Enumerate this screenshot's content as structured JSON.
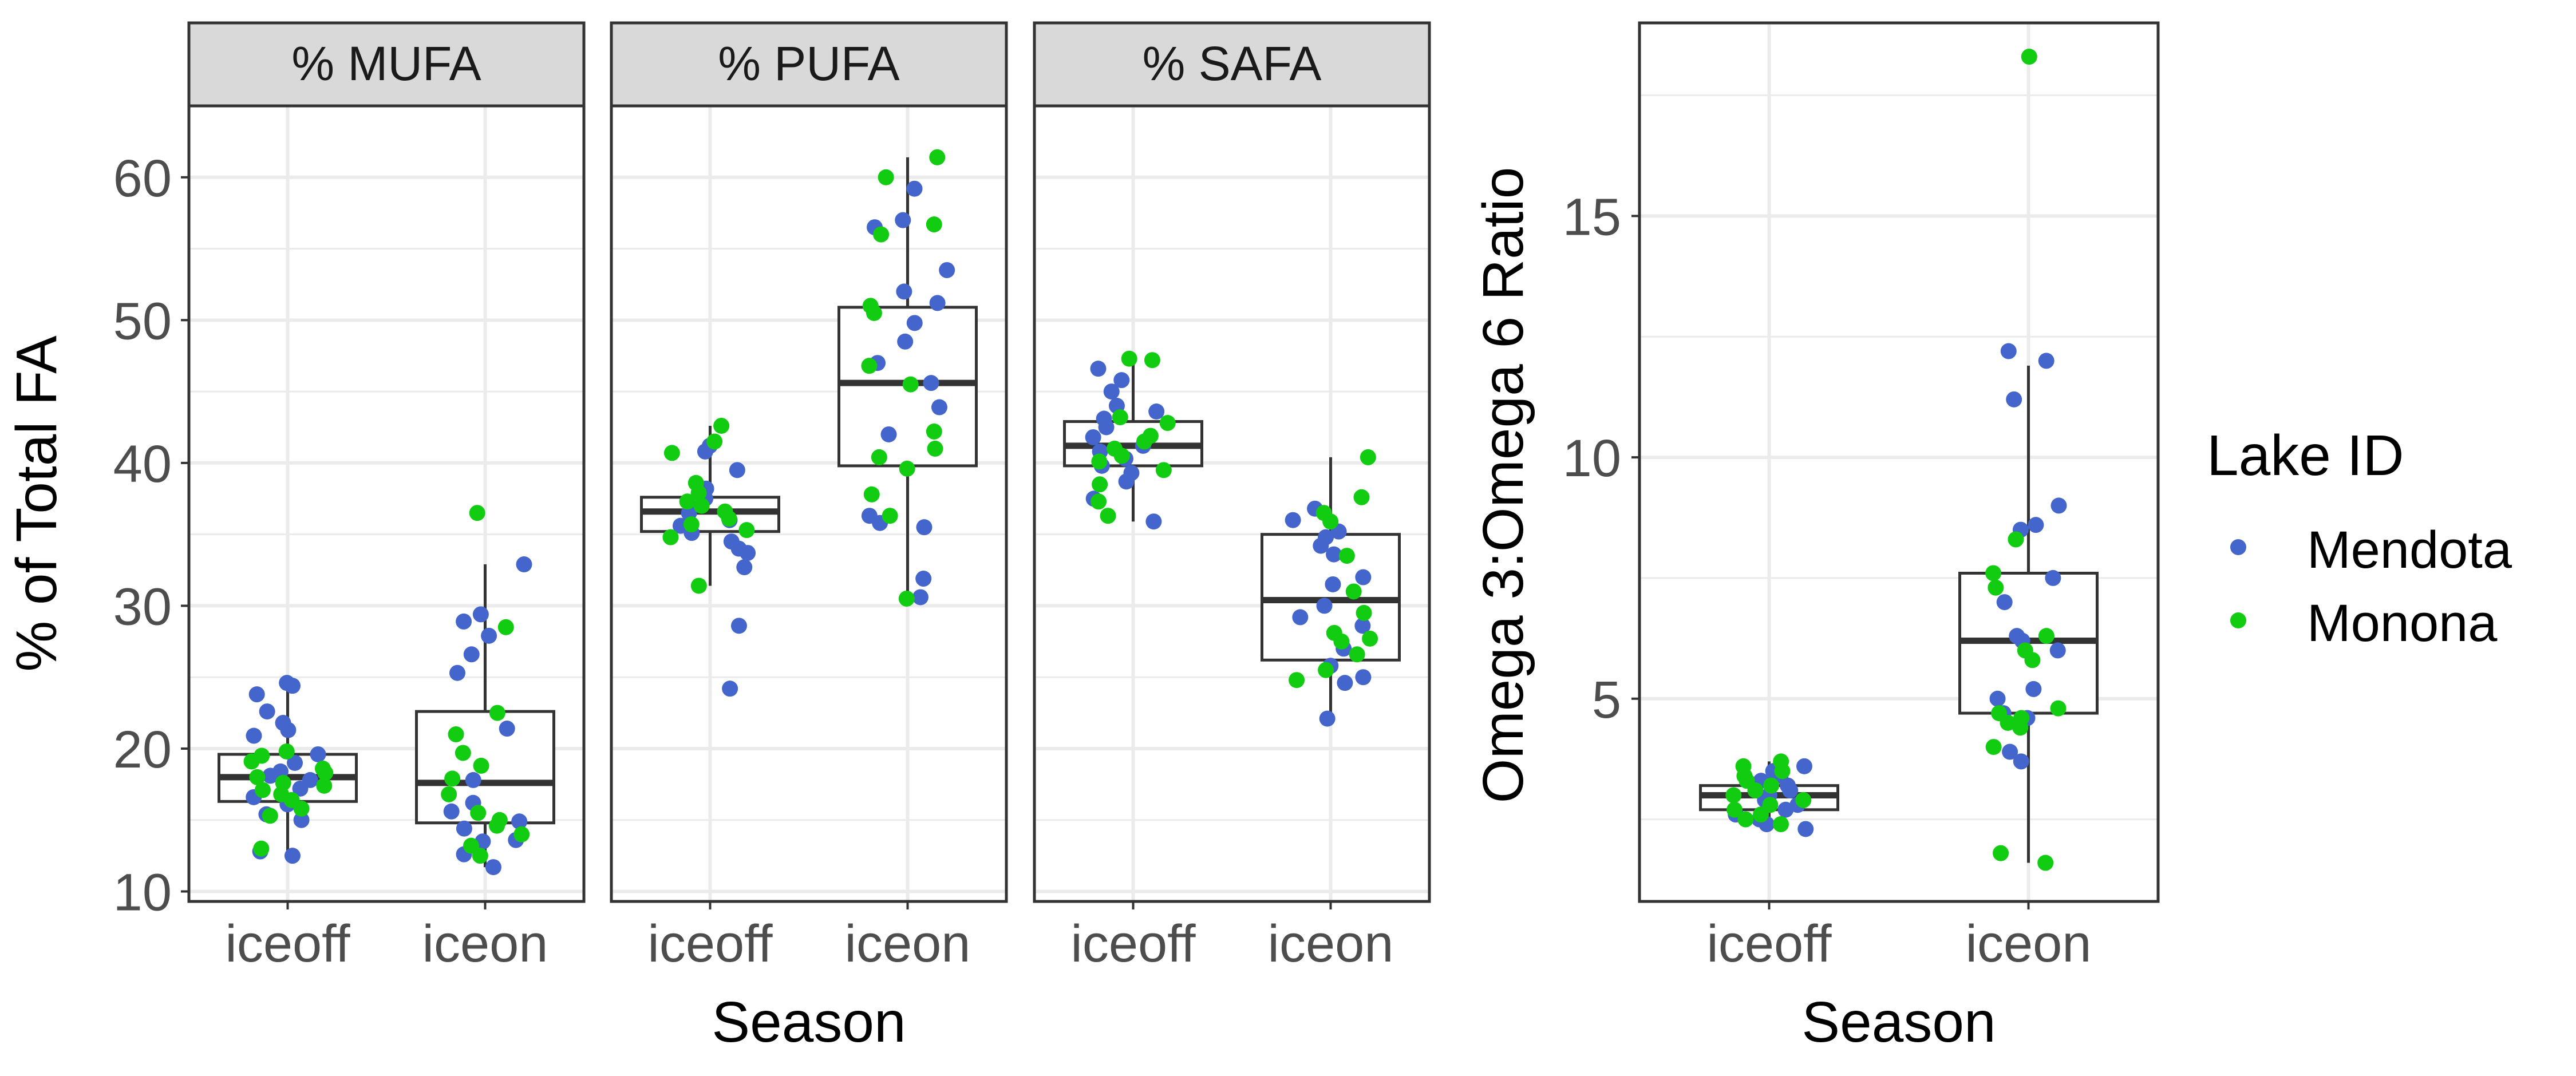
{
  "colors": {
    "mendota": "#4466cc",
    "monona": "#11cc11",
    "strip_fill": "#d9d9d9",
    "grid": "#ebebeb",
    "box": "#333333"
  },
  "legend": {
    "title": "Lake ID",
    "entries": [
      {
        "label": "Mendota",
        "color_key": "mendota"
      },
      {
        "label": "Monona",
        "color_key": "monona"
      }
    ]
  },
  "chart_data": [
    {
      "type": "box",
      "facets": [
        "% MUFA",
        "% PUFA",
        "% SAFA"
      ],
      "categories": [
        "iceoff",
        "iceon"
      ],
      "xlabel": "Season",
      "ylabel": "% of Total FA",
      "ylim": [
        9.3,
        65
      ],
      "yticks": [
        10,
        20,
        30,
        40,
        50,
        60
      ],
      "grid": true,
      "panels": [
        {
          "facet": "% MUFA",
          "boxes": [
            {
              "category": "iceoff",
              "q1": 16.3,
              "median": 18.0,
              "q3": 19.6,
              "whisker_low": 12.5,
              "whisker_high": 24.6
            },
            {
              "category": "iceon",
              "q1": 14.8,
              "median": 17.6,
              "q3": 22.6,
              "whisker_low": 11.7,
              "whisker_high": 32.9
            }
          ],
          "points": {
            "iceoff": {
              "mendota": [
                24.6,
                24.4,
                23.8,
                22.6,
                21.8,
                21.3,
                20.9,
                19.6,
                19.0,
                18.4,
                18.1,
                17.8,
                17.2,
                16.6,
                16.1,
                15.4,
                15.0,
                12.8,
                12.5
              ],
              "monona": [
                19.8,
                19.5,
                19.1,
                18.6,
                18.3,
                18.0,
                17.6,
                17.4,
                17.1,
                16.8,
                16.4,
                15.8,
                15.3,
                13.0
              ]
            },
            "iceon": {
              "mendota": [
                32.9,
                29.4,
                28.9,
                27.9,
                26.6,
                25.3,
                21.4,
                17.8,
                16.2,
                15.6,
                14.9,
                14.4,
                13.6,
                13.5,
                12.6,
                11.7
              ],
              "monona": [
                36.5,
                28.5,
                22.5,
                21.0,
                19.7,
                18.8,
                17.9,
                16.8,
                15.5,
                15.0,
                14.6,
                14.0,
                13.2,
                12.5
              ]
            }
          }
        },
        {
          "facet": "% PUFA",
          "boxes": [
            {
              "category": "iceoff",
              "q1": 35.2,
              "median": 36.6,
              "q3": 37.6,
              "whisker_low": 31.4,
              "whisker_high": 42.6
            },
            {
              "category": "iceon",
              "q1": 39.8,
              "median": 45.6,
              "q3": 50.9,
              "whisker_low": 30.5,
              "whisker_high": 61.4
            }
          ],
          "points": {
            "iceoff": {
              "mendota": [
                41.2,
                40.8,
                39.5,
                38.2,
                37.5,
                36.9,
                36.5,
                36.0,
                35.6,
                35.1,
                34.5,
                34.0,
                33.7,
                32.7,
                28.6,
                24.2
              ],
              "monona": [
                42.6,
                41.5,
                40.7,
                38.6,
                37.9,
                37.3,
                37.0,
                36.6,
                36.1,
                35.7,
                35.3,
                34.8,
                31.4
              ]
            },
            "iceon": {
              "mendota": [
                59.2,
                57.0,
                56.5,
                53.5,
                52.0,
                51.2,
                49.8,
                48.5,
                47.0,
                45.6,
                43.9,
                42.0,
                36.3,
                35.8,
                35.5,
                31.9,
                30.6
              ],
              "monona": [
                61.4,
                60.0,
                56.7,
                56.0,
                51.0,
                50.5,
                46.8,
                45.5,
                42.2,
                41.0,
                40.4,
                39.6,
                37.8,
                36.3,
                30.5
              ]
            }
          }
        },
        {
          "facet": "% SAFA",
          "boxes": [
            {
              "category": "iceoff",
              "q1": 39.8,
              "median": 41.2,
              "q3": 42.9,
              "whisker_low": 35.9,
              "whisker_high": 47.3
            },
            {
              "category": "iceon",
              "q1": 26.2,
              "median": 30.4,
              "q3": 35.0,
              "whisker_low": 22.1,
              "whisker_high": 40.4
            }
          ],
          "points": {
            "iceoff": {
              "mendota": [
                46.6,
                45.8,
                45.0,
                44.0,
                43.6,
                43.1,
                42.5,
                41.8,
                41.2,
                40.8,
                40.3,
                39.8,
                39.3,
                38.7,
                37.5,
                35.9
              ],
              "monona": [
                47.3,
                47.2,
                43.2,
                42.8,
                41.9,
                41.5,
                41.0,
                40.5,
                40.1,
                39.5,
                38.5,
                37.3,
                36.3
              ]
            },
            "iceon": {
              "mendota": [
                36.8,
                36.0,
                35.2,
                34.8,
                34.2,
                33.6,
                32.0,
                31.5,
                30.0,
                29.2,
                28.6,
                27.0,
                25.8,
                25.0,
                24.6,
                22.1
              ],
              "monona": [
                40.4,
                37.6,
                36.5,
                35.9,
                33.5,
                31.0,
                29.5,
                28.1,
                27.7,
                27.5,
                26.6,
                25.5,
                24.8
              ]
            }
          }
        }
      ]
    },
    {
      "type": "box",
      "categories": [
        "iceoff",
        "iceon"
      ],
      "xlabel": "Season",
      "ylabel": "Omega 3:Omega 6 Ratio",
      "ylim": [
        0.8,
        19.0
      ],
      "yticks": [
        5,
        10,
        15
      ],
      "grid": true,
      "boxes": [
        {
          "category": "iceoff",
          "q1": 2.7,
          "median": 3.0,
          "q3": 3.2,
          "whisker_low": 2.3,
          "whisker_high": 3.7
        },
        {
          "category": "iceon",
          "q1": 4.7,
          "median": 6.2,
          "q3": 7.6,
          "whisker_low": 1.6,
          "whisker_high": 11.9
        }
      ],
      "points": {
        "iceoff": {
          "mendota": [
            3.6,
            3.5,
            3.4,
            3.3,
            3.2,
            3.1,
            3.0,
            2.9,
            2.8,
            2.7,
            2.6,
            2.5,
            2.4,
            2.3
          ],
          "monona": [
            3.7,
            3.6,
            3.5,
            3.4,
            3.3,
            3.2,
            3.1,
            3.0,
            2.9,
            2.8,
            2.7,
            2.6,
            2.5,
            2.4
          ]
        },
        "iceon": {
          "mendota": [
            12.2,
            12.0,
            11.2,
            9.0,
            8.6,
            8.5,
            7.5,
            7.0,
            6.3,
            6.2,
            6.0,
            5.2,
            5.0,
            4.7,
            4.6,
            3.9,
            3.7
          ],
          "monona": [
            18.3,
            8.3,
            7.6,
            7.3,
            6.3,
            6.0,
            5.8,
            4.8,
            4.7,
            4.6,
            4.5,
            4.4,
            4.0,
            1.8,
            1.6
          ]
        }
      }
    }
  ]
}
